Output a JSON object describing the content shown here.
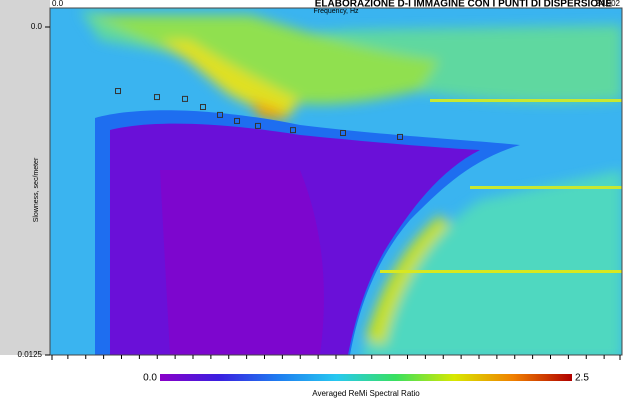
{
  "chart_data": {
    "type": "scatter",
    "title": "ELABORAZIONE D-I IMMAGINE CON I PUNTI DI DISPERSIONE",
    "x_label": "Frequency, Hz",
    "y_label": "Slowness, sec/meter",
    "xlim": [
      0,
      24.902
    ],
    "ylim": [
      0,
      0.0125
    ],
    "xticks": [
      {
        "value": 0,
        "label": "0.0"
      },
      24.902
    ],
    "yticks": [
      {
        "value": 0,
        "label": "0.0"
      },
      0.0125
    ],
    "series": [
      {
        "name": "Punti di dispersione",
        "color": "#333333",
        "x": [
          2.894,
          4.603,
          5.831,
          6.62,
          7.365,
          8.111,
          9.031,
          10.566,
          12.758,
          15.257
        ],
        "values": [
          0.00244,
          0.00267,
          0.00274,
          0.00305,
          0.00335,
          0.00358,
          0.00377,
          0.00393,
          0.00404,
          0.00419
        ]
      }
    ],
    "colorbar": {
      "label": "Averaged ReMi Spectral Ratio",
      "lim": [
        {
          "value": 0,
          "label": "0.0"
        },
        2.5
      ],
      "colors": [
        "#8a00c8",
        "#3a1fe0",
        "#1e7cf0",
        "#27c8f0",
        "#38e060",
        "#d8e800",
        "#f08000",
        "#b00000"
      ]
    }
  }
}
